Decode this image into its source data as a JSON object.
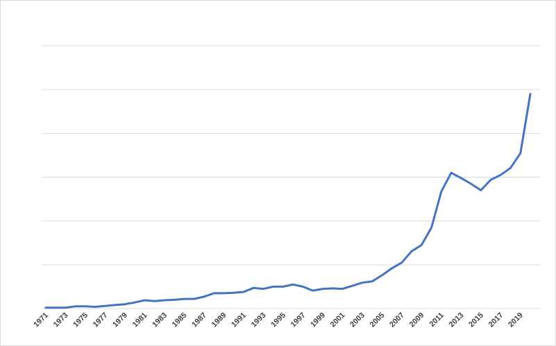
{
  "chart_data": {
    "type": "line",
    "title": "",
    "xlabel": "",
    "ylabel": "",
    "grid": true,
    "legend": "none",
    "x": [
      1971,
      1972,
      1973,
      1974,
      1975,
      1976,
      1977,
      1978,
      1979,
      1980,
      1981,
      1982,
      1983,
      1984,
      1985,
      1986,
      1987,
      1988,
      1989,
      1990,
      1991,
      1992,
      1993,
      1994,
      1995,
      1996,
      1997,
      1998,
      1999,
      2000,
      2001,
      2002,
      2003,
      2004,
      2005,
      2006,
      2007,
      2008,
      2009,
      2010,
      2011,
      2012,
      2013,
      2014,
      2015,
      2016,
      2017,
      2018,
      2019,
      2020
    ],
    "x_tick_labels": [
      "1971",
      "1973",
      "1975",
      "1977",
      "1979",
      "1981",
      "1983",
      "1985",
      "1987",
      "1989",
      "1991",
      "1993",
      "1995",
      "1997",
      "1999",
      "2001",
      "2003",
      "2005",
      "2007",
      "2009",
      "2011",
      "2013",
      "2015",
      "2017",
      "2019"
    ],
    "ylim": [
      0,
      6
    ],
    "y_gridlines": [
      1,
      2,
      3,
      4,
      5,
      6
    ],
    "series": [
      {
        "color": "#4472c4",
        "values": [
          0.02,
          0.02,
          0.02,
          0.05,
          0.05,
          0.04,
          0.06,
          0.08,
          0.1,
          0.14,
          0.19,
          0.17,
          0.19,
          0.2,
          0.22,
          0.22,
          0.27,
          0.35,
          0.35,
          0.36,
          0.38,
          0.47,
          0.45,
          0.5,
          0.5,
          0.55,
          0.5,
          0.41,
          0.45,
          0.46,
          0.45,
          0.52,
          0.59,
          0.62,
          0.76,
          0.92,
          1.05,
          1.31,
          1.45,
          1.85,
          2.67,
          3.1,
          2.98,
          2.85,
          2.7,
          2.94,
          3.05,
          3.21,
          3.55,
          4.9
        ]
      }
    ]
  }
}
